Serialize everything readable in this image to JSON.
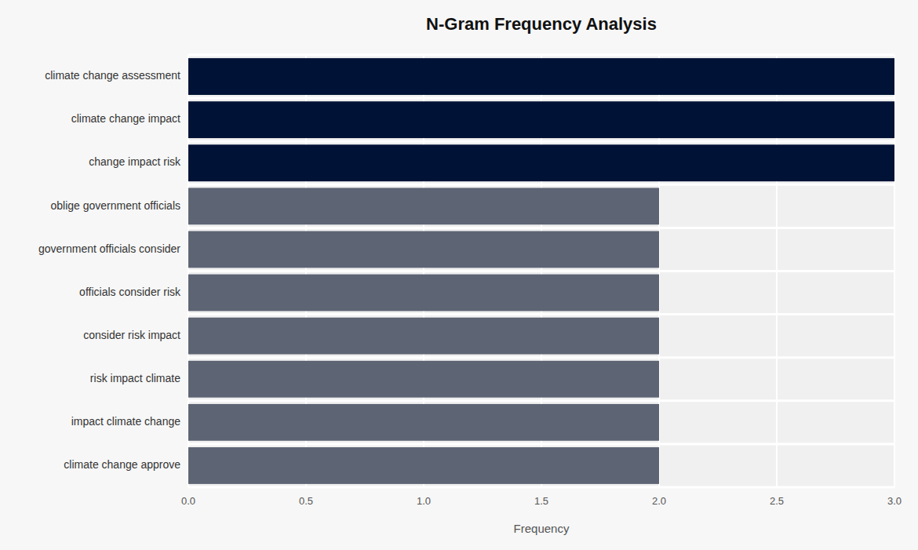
{
  "chart_data": {
    "type": "bar",
    "orientation": "horizontal",
    "title": "N-Gram Frequency Analysis",
    "xlabel": "Frequency",
    "categories": [
      "climate change approve",
      "impact climate change",
      "risk impact climate",
      "consider risk impact",
      "officials consider risk",
      "government officials consider",
      "oblige government officials",
      "change impact risk",
      "climate change impact",
      "climate change assessment"
    ],
    "values": [
      2,
      2,
      2,
      2,
      2,
      2,
      2,
      3,
      3,
      3
    ],
    "colors": [
      "#5d6474",
      "#5d6474",
      "#5d6474",
      "#5d6474",
      "#5d6474",
      "#5d6474",
      "#5d6474",
      "#001235",
      "#001235",
      "#001235"
    ],
    "xlim": [
      0,
      3.0
    ],
    "xticks": [
      {
        "value": 0,
        "label": "0.0"
      },
      0.5,
      {
        "value": 1,
        "label": "1.0"
      },
      1.5,
      {
        "value": 2,
        "label": "2.0"
      },
      2.5,
      {
        "value": 3,
        "label": "3.0"
      }
    ],
    "grid": true
  }
}
